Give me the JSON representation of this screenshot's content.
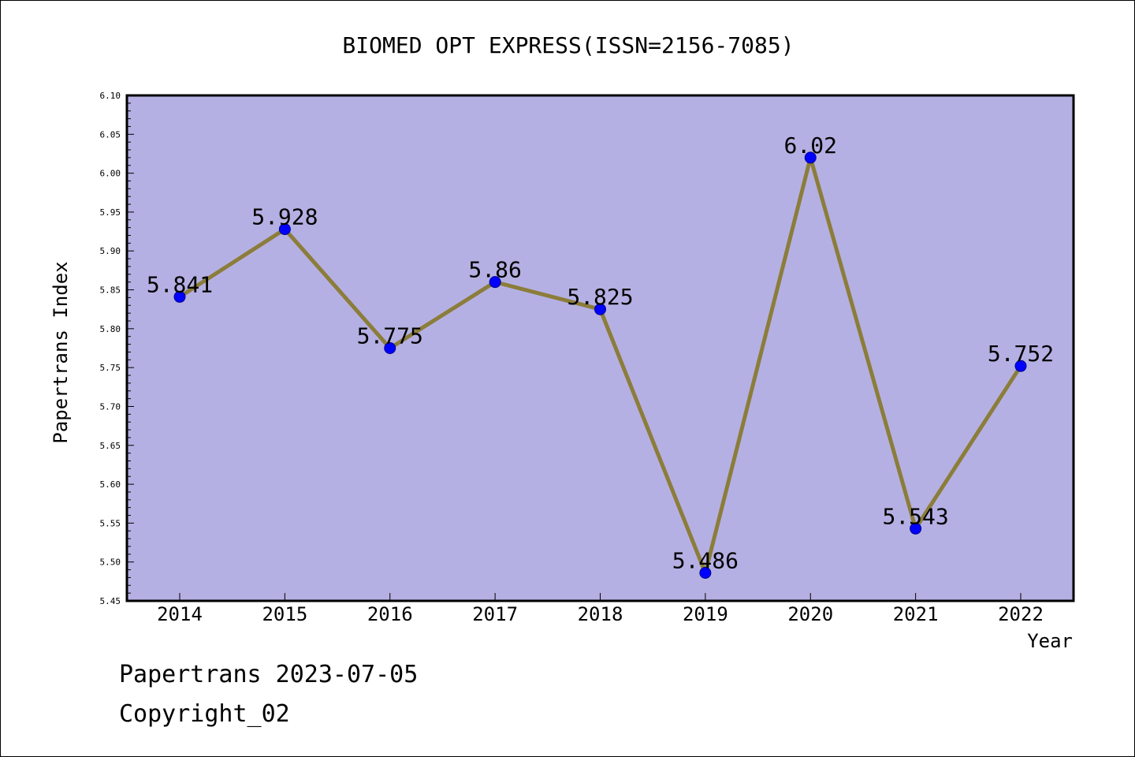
{
  "chart_data": {
    "type": "line",
    "title": "BIOMED OPT EXPRESS(ISSN=2156-7085)",
    "xlabel": "Year",
    "ylabel": "Papertrans Index",
    "categories": [
      "2014",
      "2015",
      "2016",
      "2017",
      "2018",
      "2019",
      "2020",
      "2021",
      "2022"
    ],
    "series": [
      {
        "values": [
          5.841,
          5.928,
          5.775,
          5.86,
          5.825,
          5.486,
          6.02,
          5.543,
          5.752
        ],
        "labels": [
          "5.841",
          "5.928",
          "5.775",
          "5.86",
          "5.825",
          "5.486",
          "6.02",
          "5.543",
          "5.752"
        ]
      }
    ],
    "ylim": [
      5.45,
      6.1
    ],
    "yticks": [
      "5.45",
      "5.50",
      "5.55",
      "5.60",
      "5.65",
      "5.70",
      "5.75",
      "5.80",
      "5.85",
      "5.90",
      "5.95",
      "6.00",
      "6.05",
      "6.10"
    ],
    "grid": false,
    "legend": "none",
    "colors": {
      "plot_background": "#b5b0e3",
      "line": "#8b7d3a",
      "marker": "#0000ff"
    }
  },
  "footer": {
    "line1": "Papertrans 2023-07-05",
    "line2": "Copyright_02"
  }
}
